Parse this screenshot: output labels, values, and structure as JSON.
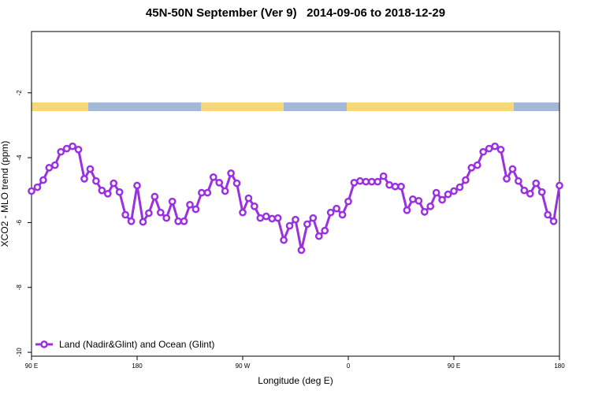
{
  "chart_data": {
    "type": "line",
    "title": "45N-50N September (Ver 9)   2014-09-06 to 2018-12-29",
    "xlabel": "Longitude (deg E)",
    "ylabel": "XCO2 - MLO trend (ppm)",
    "xlim": [
      90,
      540
    ],
    "ylim": [
      -10.12,
      -0.11
    ],
    "xticks": [
      {
        "value": 90,
        "label": "90 E"
      },
      180,
      {
        "value": 270,
        "label": "90 W"
      },
      {
        "value": 360,
        "label": "0"
      },
      {
        "value": 450,
        "label": "90 E"
      },
      {
        "value": 540,
        "label": "180"
      }
    ],
    "yticks": [
      -2,
      -4,
      -6,
      -8,
      -10
    ],
    "legend": "bottom-left",
    "x": [
      90,
      95,
      100,
      105,
      110,
      115,
      120,
      125,
      130,
      135,
      140,
      145,
      150,
      155,
      160,
      165,
      170,
      175,
      180,
      185,
      190,
      195,
      200,
      205,
      210,
      215,
      220,
      225,
      230,
      235,
      240,
      245,
      250,
      255,
      260,
      265,
      270,
      275,
      280,
      285,
      290,
      295,
      300,
      305,
      310,
      315,
      320,
      325,
      330,
      335,
      340,
      345,
      350,
      355,
      360,
      365,
      370,
      375,
      380,
      385,
      390,
      395,
      400,
      405,
      410,
      415,
      420,
      425,
      430,
      435,
      440,
      445,
      450,
      455,
      460,
      465,
      470,
      475,
      480,
      485,
      490,
      495,
      500,
      505,
      510,
      515,
      520,
      525,
      530,
      535,
      540
    ],
    "series": [
      {
        "name": "Land (Nadir&Glint) and Ocean (Glint)",
        "color": "#9b30e0",
        "values": [
          -5.03,
          -4.91,
          -4.69,
          -4.31,
          -4.23,
          -3.82,
          -3.72,
          -3.65,
          -3.75,
          -4.65,
          -4.35,
          -4.72,
          -5.01,
          -5.11,
          -4.79,
          -5.06,
          -5.76,
          -5.96,
          -4.86,
          -5.98,
          -5.71,
          -5.2,
          -5.69,
          -5.86,
          -5.35,
          -5.96,
          -5.96,
          -5.45,
          -5.59,
          -5.08,
          -5.08,
          -4.6,
          -4.77,
          -5.03,
          -4.48,
          -4.79,
          -5.69,
          -5.25,
          -5.5,
          -5.86,
          -5.81,
          -5.88,
          -5.86,
          -6.54,
          -6.1,
          -5.91,
          -6.85,
          -6.05,
          -5.86,
          -6.42,
          -6.25,
          -5.69,
          -5.57,
          -5.76,
          -5.35,
          -4.77,
          -4.72,
          -4.74,
          -4.74,
          -4.74,
          -4.57,
          -4.84,
          -4.89,
          -4.89,
          -5.62,
          -5.28,
          -5.33,
          -5.67,
          -5.5,
          -5.08,
          -5.3,
          -5.13,
          -5.03,
          -4.91,
          -4.69,
          -4.31,
          -4.23,
          -3.82,
          -3.72,
          -3.65,
          -3.75,
          -4.65,
          -4.35,
          -4.72,
          -5.01,
          -5.11,
          -4.79,
          -5.06,
          -5.76,
          -5.96,
          -4.86
        ]
      }
    ]
  }
}
